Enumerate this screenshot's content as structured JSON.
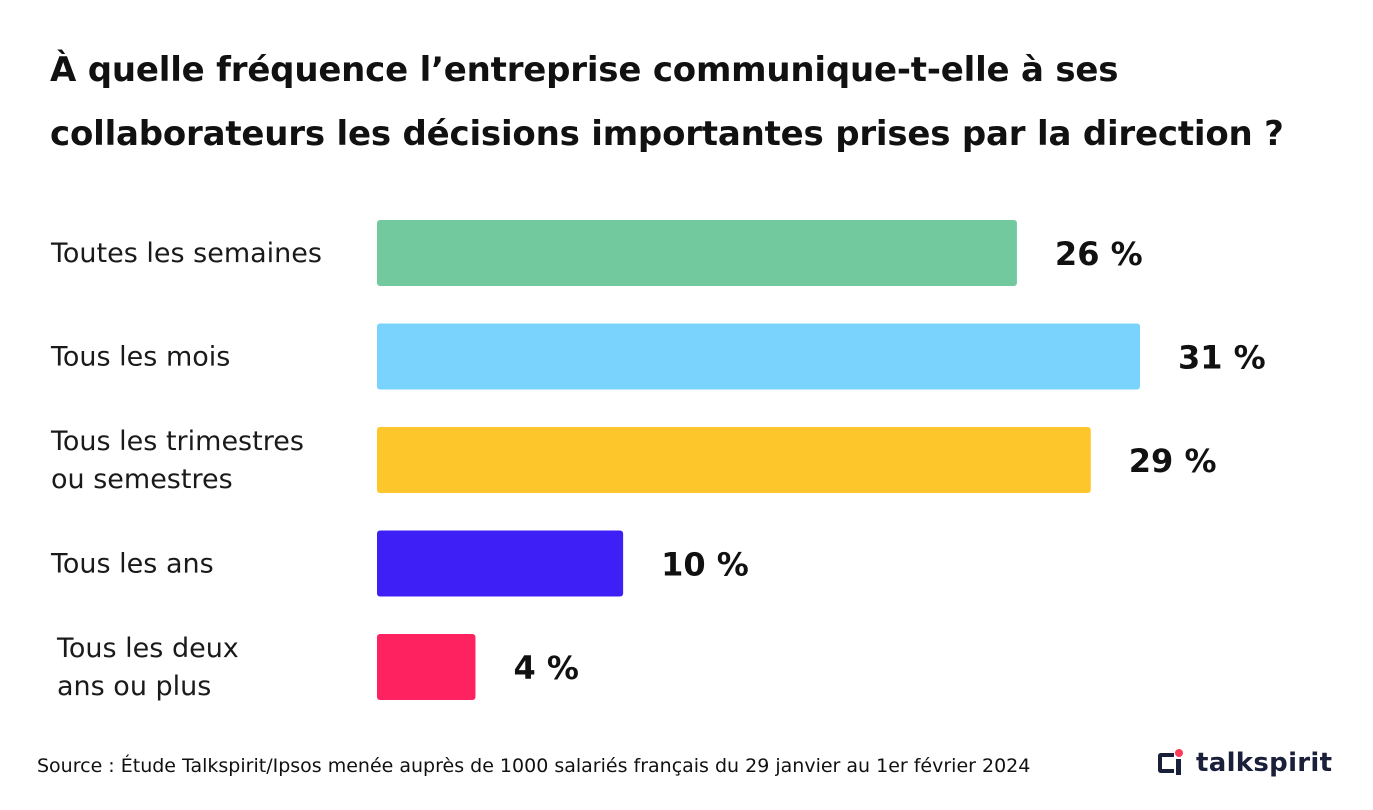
{
  "chart_data": {
    "type": "bar",
    "orientation": "horizontal",
    "title": "À quelle fréquence l’entreprise communique-t-elle à ses collaborateurs les décisions importantes prises par la direction ?",
    "title_lines": [
      "À quelle fréquence l’entreprise communique-t-elle à ses",
      "collaborateurs les décisions importantes prises par la direction ?"
    ],
    "categories": [
      "Toutes les semaines",
      "Tous les mois",
      "Tous les trimestres ou semestres",
      "Tous les ans",
      "Tous les deux ans ou plus"
    ],
    "category_lines": [
      [
        "Toutes les semaines"
      ],
      [
        "Tous les mois"
      ],
      [
        "Tous les trimestres",
        "ou semestres"
      ],
      [
        "Tous les ans"
      ],
      [
        "Tous les deux",
        "ans ou plus"
      ]
    ],
    "values": [
      26,
      31,
      29,
      10,
      4
    ],
    "value_labels": [
      "26 %",
      "31 %",
      "29 %",
      "10 %",
      "4 %"
    ],
    "colors": [
      "#72c99e",
      "#79d3fc",
      "#fdc72b",
      "#3e1ff5",
      "#ff2261"
    ],
    "unit": "%",
    "xlim": [
      0,
      31
    ],
    "grid": false,
    "legend": "none"
  },
  "footer": {
    "source": "Source : Étude Talkspirit/Ipsos menée auprès de 1000 salariés français du 29 janvier au 1er février 2024"
  },
  "brand": {
    "name": "talkspirit",
    "colors": {
      "text": "#1a1f3a",
      "dot": "#ff3b5c"
    }
  }
}
